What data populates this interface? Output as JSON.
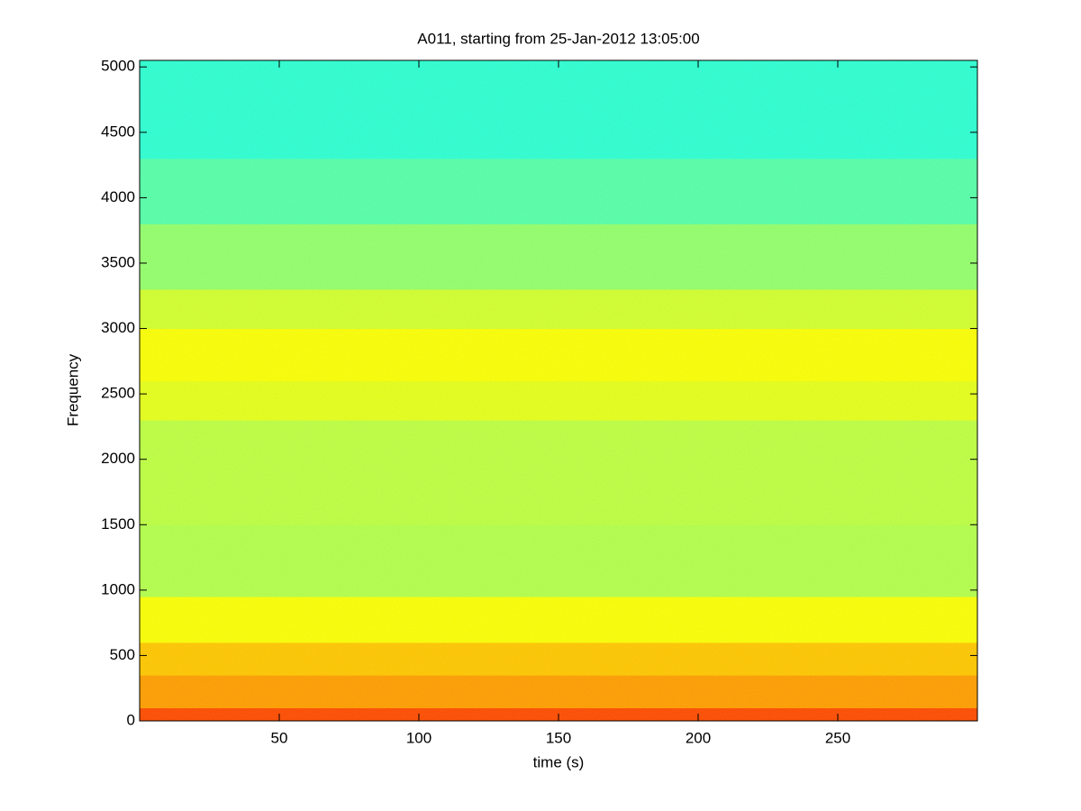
{
  "chart_data": {
    "type": "spectrogram",
    "title": "A011, starting from 25-Jan-2012 13:05:00",
    "x_label": "time (s)",
    "y_label": "Frequency",
    "xlim": [
      0,
      300
    ],
    "ylim": [
      0,
      5050
    ],
    "xticks": [
      50,
      100,
      150,
      200,
      250
    ],
    "yticks": [
      0,
      500,
      1000,
      1500,
      2000,
      2500,
      3000,
      3500,
      4000,
      4500,
      5000
    ],
    "colormap": "jet",
    "clim": [
      0,
      1
    ],
    "frequency_bins": [
      0,
      100,
      350,
      600,
      950,
      1500,
      2300,
      2600,
      3000,
      3300,
      3800,
      4300,
      5050
    ],
    "levels": [
      0.8,
      0.72,
      0.68,
      0.62,
      0.55,
      0.56,
      0.6,
      0.62,
      0.58,
      0.52,
      0.46,
      0.42
    ]
  }
}
